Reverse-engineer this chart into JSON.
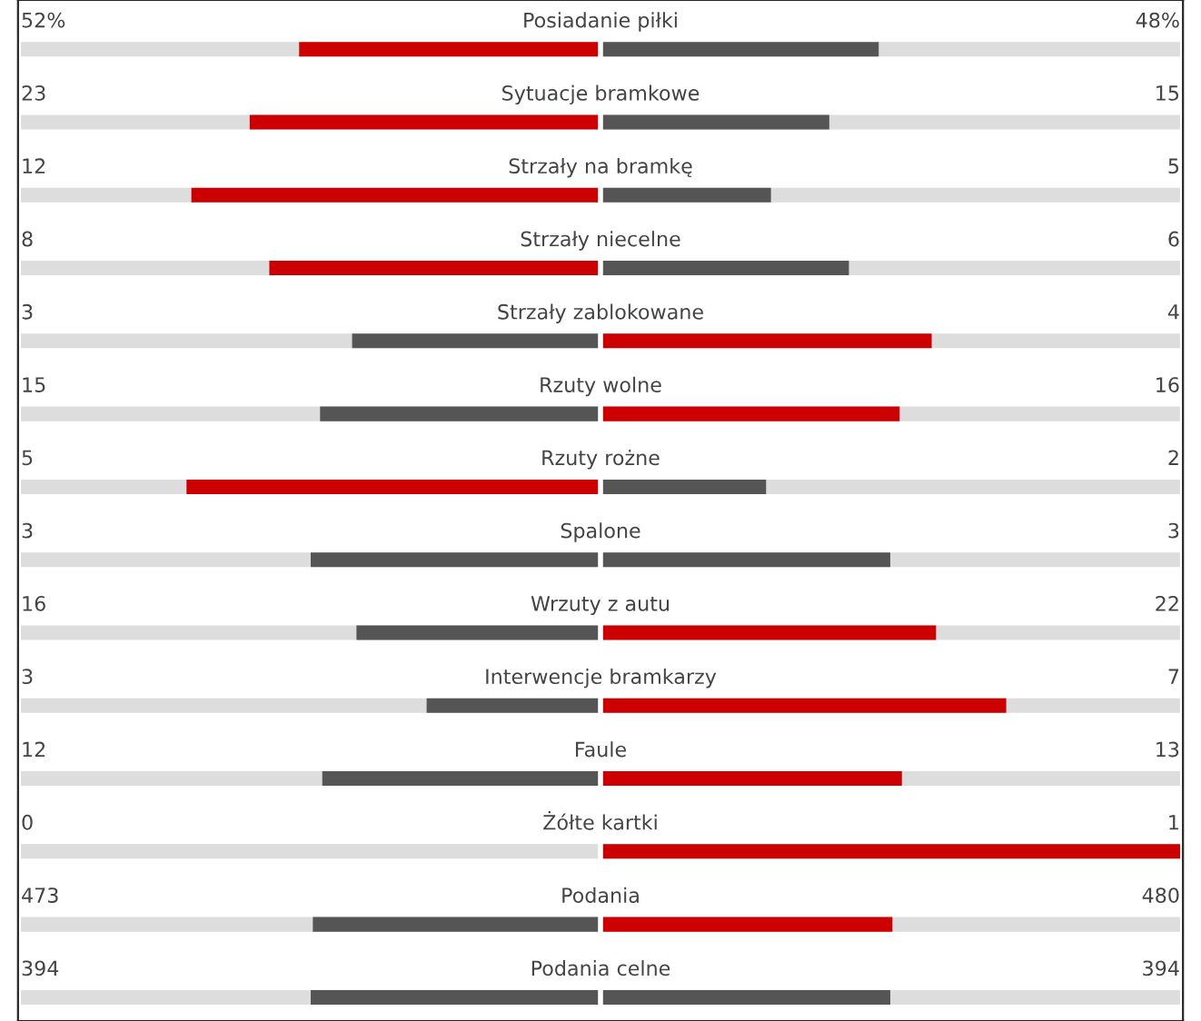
{
  "chart_data": {
    "type": "other",
    "categories": [
      "Posiadanie piłki",
      "Sytuacje bramkowe",
      "Strzały na bramkę",
      "Strzały niecelne",
      "Strzały zablokowane",
      "Rzuty wolne",
      "Rzuty rożne",
      "Spalone",
      "Wrzuty z autu",
      "Interwencje bramkarzy",
      "Faule",
      "Żółte kartki",
      "Podania",
      "Podania celne"
    ],
    "series": [
      {
        "values": [
          52,
          23,
          12,
          8,
          3,
          15,
          5,
          3,
          16,
          3,
          12,
          0,
          473,
          394
        ],
        "colors": [
          "#cc0000",
          "#cc0000",
          "#cc0000",
          "#cc0000",
          "#555555",
          "#555555",
          "#cc0000",
          "#555555",
          "#555555",
          "#555555",
          "#555555",
          "#555555",
          "#555555",
          "#555555"
        ],
        "value_labels": [
          "52%",
          "23",
          "12",
          "8",
          "3",
          "15",
          "5",
          "3",
          "16",
          "3",
          "12",
          "0",
          "473",
          "394"
        ]
      },
      {
        "values": [
          48,
          15,
          5,
          6,
          4,
          16,
          2,
          3,
          22,
          7,
          13,
          1,
          480,
          394
        ],
        "colors": [
          "#555555",
          "#555555",
          "#555555",
          "#555555",
          "#cc0000",
          "#cc0000",
          "#555555",
          "#555555",
          "#cc0000",
          "#cc0000",
          "#cc0000",
          "#cc0000",
          "#cc0000",
          "#555555"
        ],
        "value_labels": [
          "48%",
          "15",
          "5",
          "6",
          "4",
          "16",
          "2",
          "3",
          "22",
          "7",
          "13",
          "1",
          "480",
          "394"
        ]
      }
    ]
  }
}
